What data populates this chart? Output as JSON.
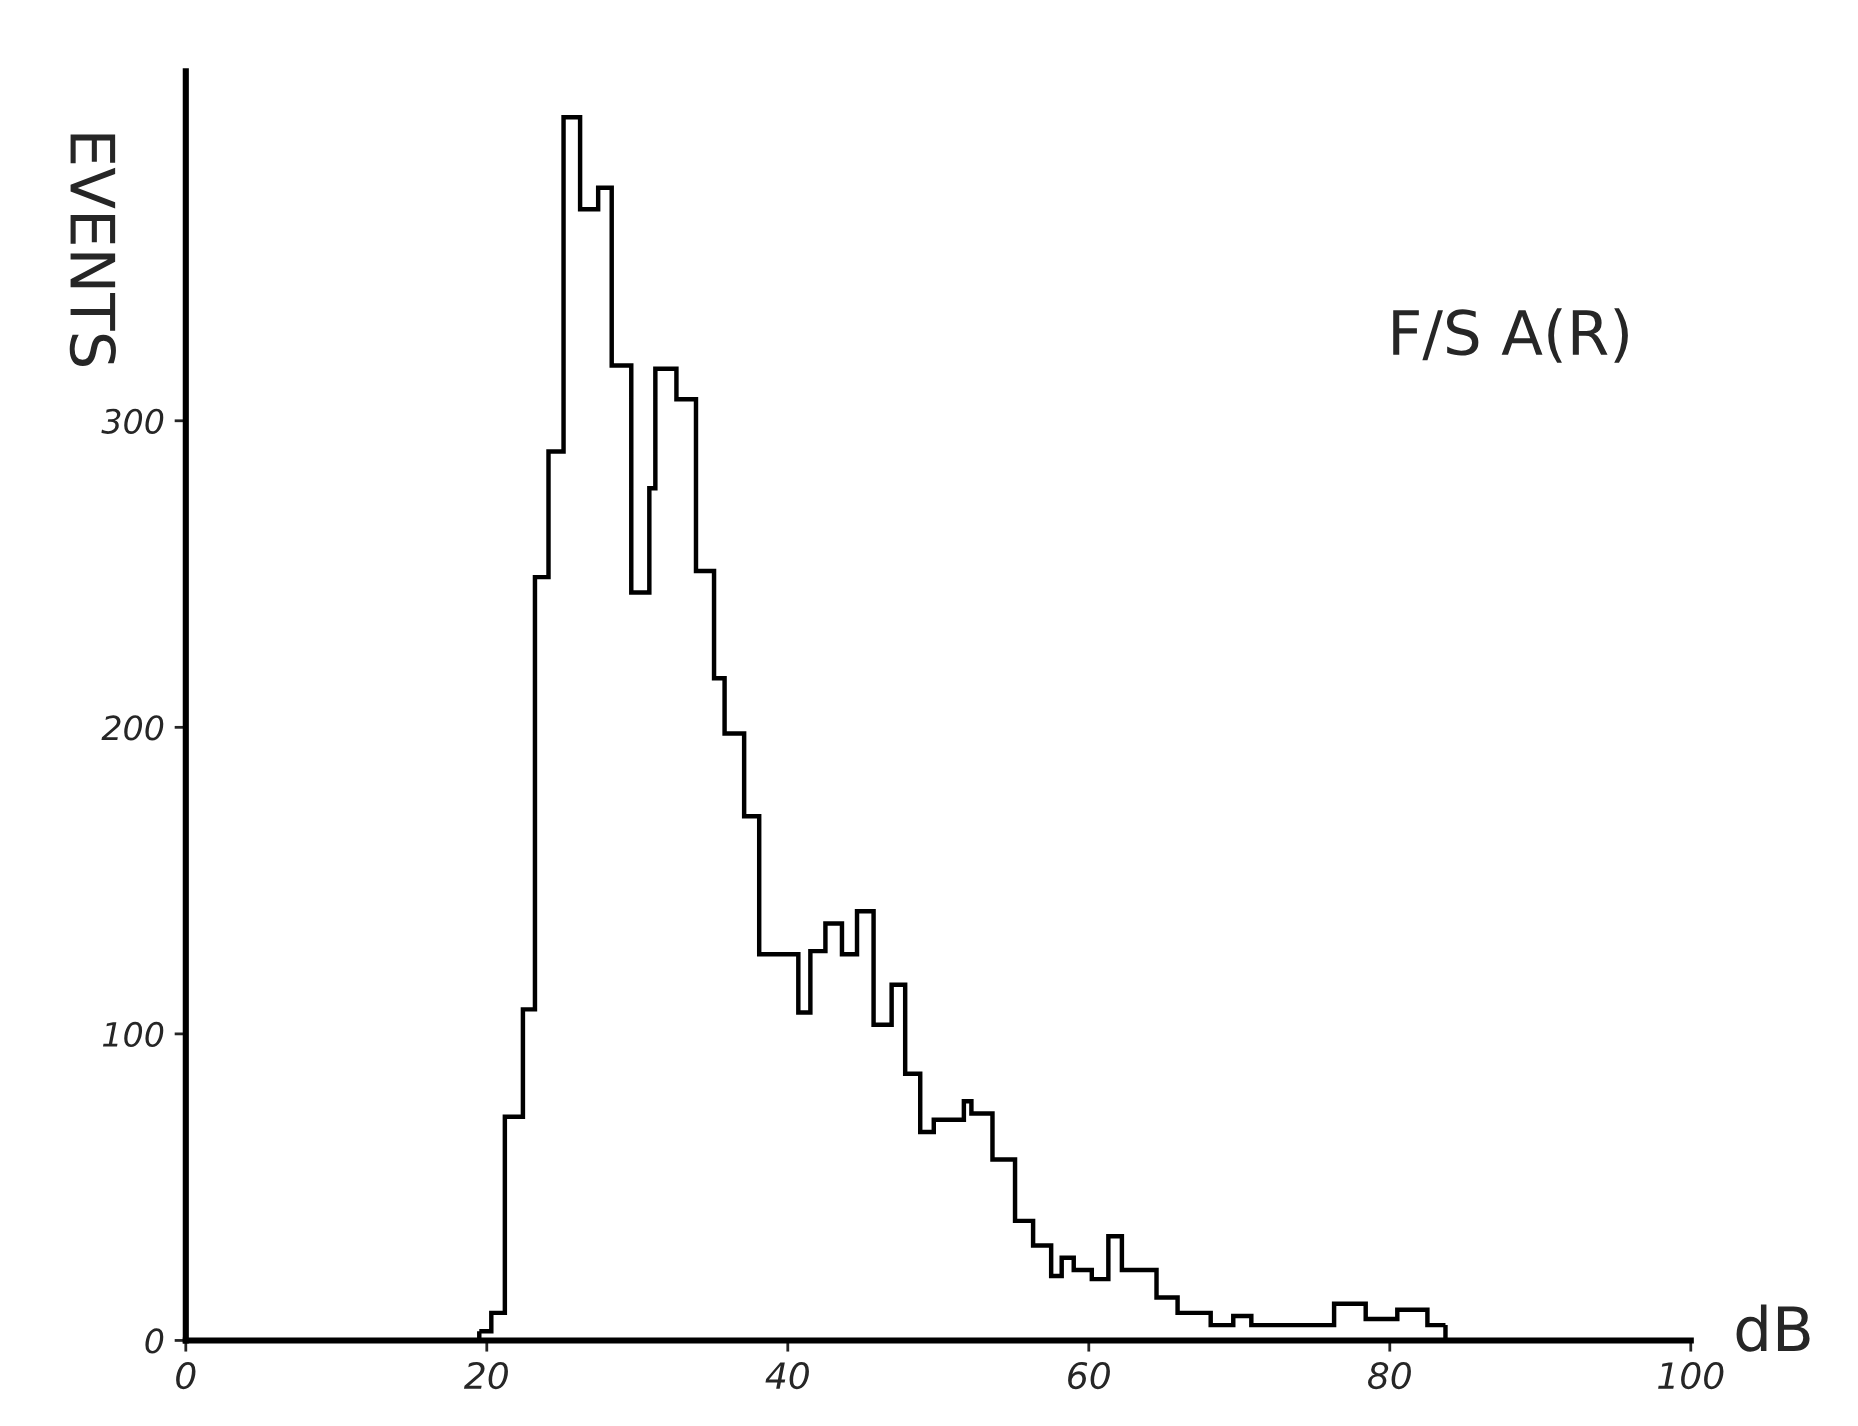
{
  "chart_data": {
    "type": "histogram",
    "xlabel": "dB",
    "ylabel": "EVENTS",
    "annotations": [
      "F/S A(R)"
    ],
    "bins": [
      19.5,
      20.3,
      21.2,
      22.4,
      23.2,
      24.1,
      25.1,
      26.2,
      27.4,
      28.3,
      29.6,
      30.8,
      31.2,
      32.6,
      33.9,
      35.1,
      35.8,
      37.1,
      38.1,
      40.7,
      41.5,
      42.5,
      43.6,
      44.6,
      45.7,
      46.9,
      47.8,
      48.8,
      49.7,
      51.7,
      52.2,
      53.6,
      55.1,
      56.3,
      57.5,
      58.2,
      59.0,
      60.2,
      61.3,
      62.2,
      64.5,
      65.9,
      68.1,
      69.6,
      70.8,
      76.3,
      78.4,
      80.5,
      82.5,
      83.7
    ],
    "values": [
      3,
      9,
      73,
      108,
      249,
      290,
      399,
      369,
      376,
      318,
      244,
      278,
      317,
      307,
      251,
      216,
      198,
      171,
      126,
      107,
      127,
      136,
      126,
      140,
      103,
      116,
      87,
      68,
      72,
      78,
      74,
      59,
      39,
      31,
      21,
      27,
      23,
      20,
      34,
      23,
      14,
      9,
      5,
      8,
      5,
      12,
      7,
      10,
      5
    ],
    "color": "#000000",
    "xlim": [
      0,
      100
    ],
    "xticks": [
      0,
      20,
      40,
      60,
      80,
      100
    ],
    "ylim": [
      0,
      414
    ],
    "yticks": [
      0,
      100,
      200,
      300
    ],
    "grid": false,
    "legend": false
  }
}
